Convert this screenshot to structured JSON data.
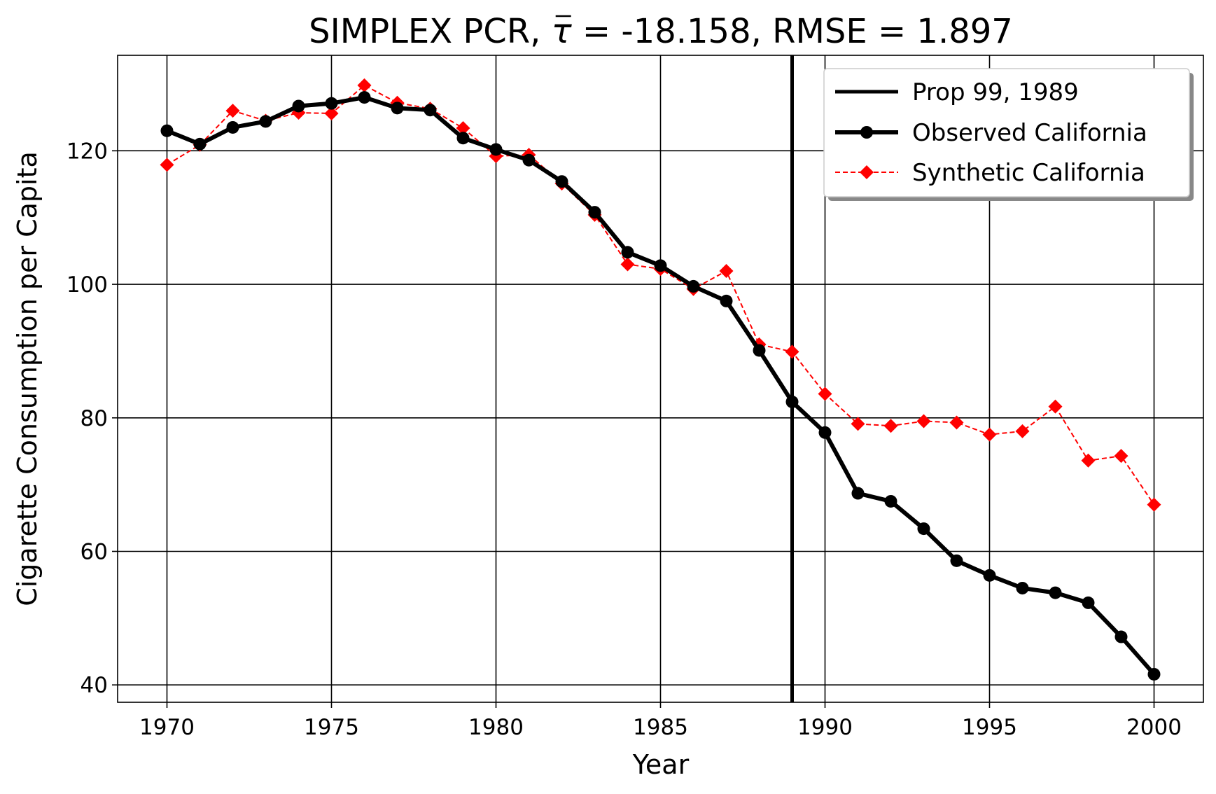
{
  "chart_data": {
    "type": "line",
    "title_prefix": "SIMPLEX PCR, ",
    "title_symbol": "τ",
    "title_suffix": " = -18.158, RMSE = 1.897",
    "xlabel": "Year",
    "ylabel": "Cigarette Consumption per Capita",
    "xlim": [
      1968.5,
      2001.5
    ],
    "ylim": [
      37.4,
      134.3
    ],
    "x_ticks": [
      1970,
      1975,
      1980,
      1985,
      1990,
      1995,
      2000
    ],
    "y_ticks": [
      40,
      60,
      80,
      100,
      120
    ],
    "grid": true,
    "legend_position": "top-right",
    "intervention": {
      "name": "Prop 99, 1989",
      "x": 1989,
      "color": "#000000"
    },
    "x": [
      1970,
      1971,
      1972,
      1973,
      1974,
      1975,
      1976,
      1977,
      1978,
      1979,
      1980,
      1981,
      1982,
      1983,
      1984,
      1985,
      1986,
      1987,
      1988,
      1989,
      1990,
      1991,
      1992,
      1993,
      1994,
      1995,
      1996,
      1997,
      1998,
      1999,
      2000
    ],
    "series": [
      {
        "name": "Observed California",
        "color": "#000000",
        "marker": "circle",
        "line_style": "solid",
        "values": [
          123.0,
          121.0,
          123.5,
          124.4,
          126.7,
          127.1,
          128.0,
          126.4,
          126.1,
          121.9,
          120.2,
          118.6,
          115.4,
          110.8,
          104.8,
          102.8,
          99.7,
          97.5,
          90.1,
          82.4,
          77.8,
          68.7,
          67.5,
          63.4,
          58.6,
          56.4,
          54.5,
          53.8,
          52.3,
          47.2,
          41.6
        ]
      },
      {
        "name": "Synthetic California",
        "color": "#ff0000",
        "marker": "diamond",
        "line_style": "dashed",
        "values": [
          117.9,
          120.9,
          126.0,
          124.5,
          125.7,
          125.6,
          129.8,
          127.2,
          126.3,
          123.4,
          119.2,
          119.4,
          115.1,
          110.4,
          103.0,
          102.3,
          99.3,
          102.0,
          91.0,
          89.9,
          83.6,
          79.1,
          78.8,
          79.5,
          79.3,
          77.5,
          78.0,
          81.7,
          73.6,
          74.3,
          67.0
        ]
      }
    ]
  }
}
